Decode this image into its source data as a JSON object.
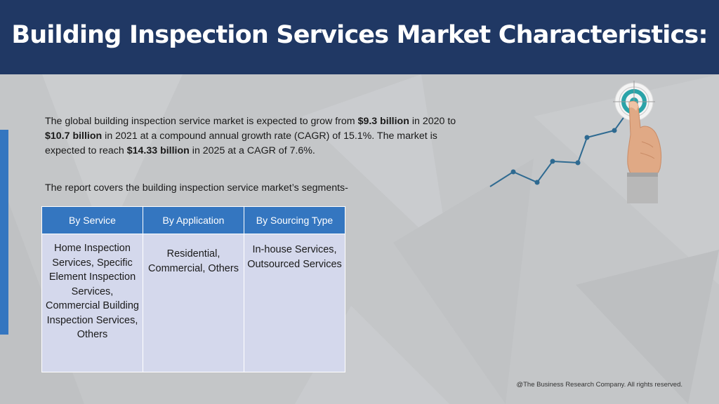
{
  "header": {
    "title": "Building Inspection Services Market Characteristics:"
  },
  "intro": {
    "part1": "The global building inspection service market is expected to grow from ",
    "value1": "$9.3 billion",
    "part2": " in 2020 to ",
    "value2": "$10.7 billion",
    "part3": " in 2021 at a compound annual growth rate (CAGR) of 15.1%. The market is expected to reach ",
    "value3": "$14.33 billion",
    "part4": " in 2025 at a CAGR of 7.6%."
  },
  "segments_intro": "The report covers the building inspection service market’s segments-",
  "table": {
    "headers": [
      "By Service",
      "By Application",
      "By Sourcing Type"
    ],
    "cells": [
      "Home Inspection Services, Specific Element Inspection Services, Commercial Building Inspection Services, Others",
      "Residential, Commercial, Others",
      "In-house Services, Outsourced Services"
    ]
  },
  "colors": {
    "header_bg": "#203864",
    "accent_blue": "#3476c0",
    "table_body": "#d4d8ec",
    "background": "#c4c6c8",
    "target_ring": "#2aa3a8"
  },
  "icons": [
    "growth-chart-icon",
    "target-icon",
    "pointing-hand-icon"
  ],
  "footer": {
    "copyright": "@The Business Research Company. All rights reserved."
  }
}
